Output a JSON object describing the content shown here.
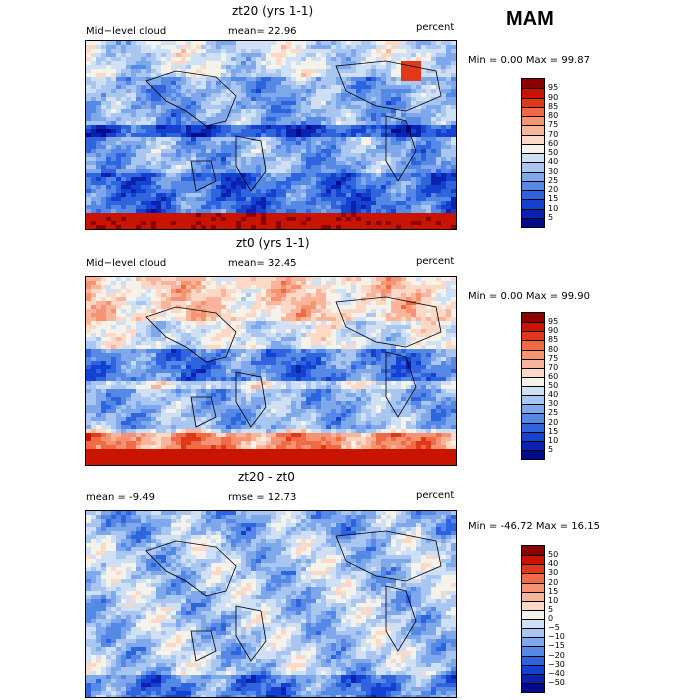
{
  "season": "MAM",
  "panels": [
    {
      "title": "zt20 (yrs 1-1)",
      "left_label": "Mid−level cloud",
      "center_label": "mean=  22.96",
      "units": "percent",
      "minmax": "Min =    0.00 Max =   99.87",
      "colorbar_labels": [
        "95",
        "90",
        "85",
        "80",
        "75",
        "70",
        "60",
        "50",
        "40",
        "30",
        "25",
        "20",
        "15",
        "10",
        "5"
      ],
      "colorbar_colors": [
        "#8b0000",
        "#c81400",
        "#e0391a",
        "#ef6a45",
        "#f69372",
        "#f9b59b",
        "#fbd9c6",
        "#f5f2ea",
        "#cfe0f5",
        "#a8c6ef",
        "#7ea8ea",
        "#5688e6",
        "#2e64de",
        "#1441cf",
        "#0b22b0",
        "#000a8a"
      ]
    },
    {
      "title": "zt0 (yrs 1-1)",
      "left_label": "Mid−level cloud",
      "center_label": "mean=  32.45",
      "units": "percent",
      "minmax": "Min =    0.00 Max =   99.90",
      "colorbar_labels": [
        "95",
        "90",
        "85",
        "80",
        "75",
        "70",
        "60",
        "50",
        "40",
        "30",
        "25",
        "20",
        "15",
        "10",
        "5"
      ],
      "colorbar_colors": [
        "#8b0000",
        "#c81400",
        "#e0391a",
        "#ef6a45",
        "#f69372",
        "#f9b59b",
        "#fbd9c6",
        "#f5f2ea",
        "#cfe0f5",
        "#a8c6ef",
        "#7ea8ea",
        "#5688e6",
        "#2e64de",
        "#1441cf",
        "#0b22b0",
        "#000a8a"
      ]
    },
    {
      "title": "zt20 - zt0",
      "left_label": "mean =   -9.49",
      "center_label": "rmse =  12.73",
      "units": "percent",
      "minmax": "Min = -46.72 Max =   16.15",
      "colorbar_labels": [
        "50",
        "40",
        "30",
        "20",
        "15",
        "10",
        "5",
        "0",
        "−5",
        "−10",
        "−15",
        "−20",
        "−30",
        "−40",
        "−50"
      ],
      "colorbar_colors": [
        "#8b0000",
        "#c81400",
        "#e0391a",
        "#ef6a45",
        "#f69372",
        "#f9b59b",
        "#fbd9c6",
        "#f5f2ea",
        "#cfe0f5",
        "#a8c6ef",
        "#7ea8ea",
        "#5688e6",
        "#2e64de",
        "#1441cf",
        "#0b22b0",
        "#000a8a"
      ]
    }
  ]
}
